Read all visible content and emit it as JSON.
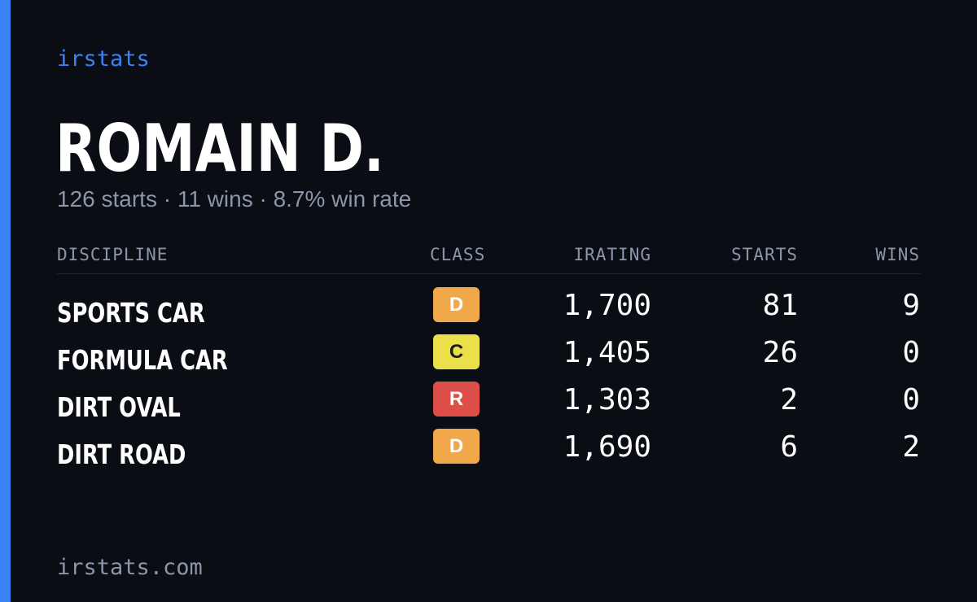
{
  "brand": "irstats",
  "player": {
    "name": "ROMAIN D.",
    "summary": "126 starts · 11 wins · 8.7% win rate"
  },
  "table": {
    "headers": {
      "discipline": "DISCIPLINE",
      "class": "CLASS",
      "irating": "IRATING",
      "starts": "STARTS",
      "wins": "WINS"
    },
    "rows": [
      {
        "discipline": "SPORTS CAR",
        "class": "D",
        "class_color": "#f0a84a",
        "class_text_color": "#ffffff",
        "irating": "1,700",
        "starts": "81",
        "wins": "9"
      },
      {
        "discipline": "FORMULA CAR",
        "class": "C",
        "class_color": "#ebe04a",
        "class_text_color": "#1a1a1a",
        "irating": "1,405",
        "starts": "26",
        "wins": "0"
      },
      {
        "discipline": "DIRT OVAL",
        "class": "R",
        "class_color": "#dc4f48",
        "class_text_color": "#ffffff",
        "irating": "1,303",
        "starts": "2",
        "wins": "0"
      },
      {
        "discipline": "DIRT ROAD",
        "class": "D",
        "class_color": "#f0a84a",
        "class_text_color": "#ffffff",
        "irating": "1,690",
        "starts": "6",
        "wins": "2"
      }
    ]
  },
  "footer": "irstats.com",
  "colors": {
    "background": "#0a0d14",
    "accent": "#3b82f6",
    "muted_text": "#8b96a8"
  }
}
